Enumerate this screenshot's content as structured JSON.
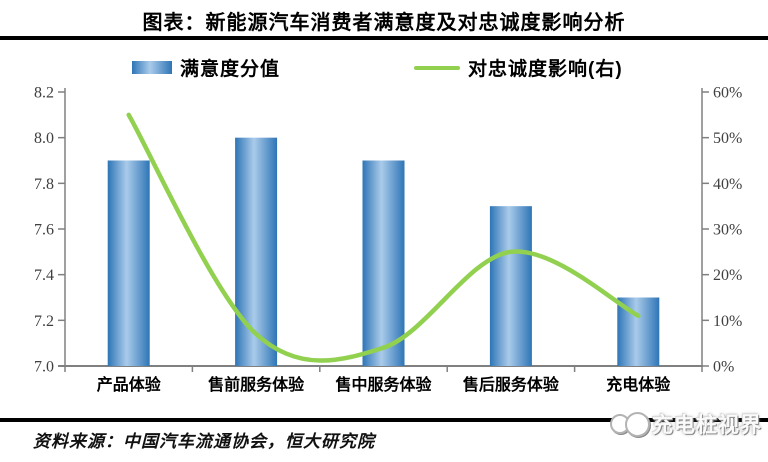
{
  "title": "图表：新能源汽车消费者满意度及对忠诚度影响分析",
  "legend": [
    {
      "label": "满意度分值",
      "type": "bar"
    },
    {
      "label": "对忠诚度影响(右)",
      "type": "line"
    }
  ],
  "source_note": "资料来源：中国汽车流通协会，恒大研究院",
  "watermark": "充电桩视界",
  "colors": {
    "bar_edge": "#2E75B6",
    "bar_highlight": "#AACBEA",
    "line": "#92D050",
    "axis": "#808080",
    "tick_text": "#404040",
    "rule": "#000000"
  },
  "chart_data": {
    "type": "bar",
    "subtype": "bar+line combo, line on secondary axis",
    "title": "图表：新能源汽车消费者满意度及对忠诚度影响分析",
    "categories": [
      "产品体验",
      "售前服务体验",
      "售中服务体验",
      "售后服务体验",
      "充电体验"
    ],
    "series": [
      {
        "name": "满意度分值",
        "type": "bar",
        "axis": "left",
        "values": [
          7.9,
          8.0,
          7.9,
          7.7,
          7.3
        ]
      },
      {
        "name": "对忠诚度影响(右)",
        "type": "line",
        "axis": "right",
        "values_pct": [
          55,
          7,
          4,
          25,
          11
        ]
      }
    ],
    "left_axis": {
      "min": 7.0,
      "max": 8.2,
      "step": 0.2,
      "ticks": [
        "8.2",
        "8.0",
        "7.8",
        "7.6",
        "7.4",
        "7.2",
        "7.0"
      ]
    },
    "right_axis": {
      "min": 0,
      "max": 60,
      "step": 10,
      "ticks": [
        "60%",
        "50%",
        "40%",
        "30%",
        "20%",
        "10%",
        "0%"
      ]
    },
    "grid": false,
    "legend_position": "top"
  }
}
